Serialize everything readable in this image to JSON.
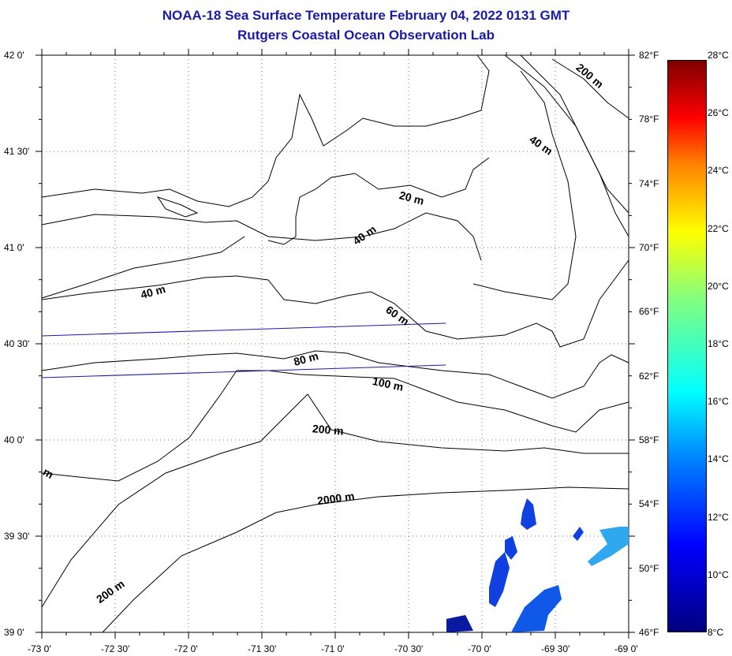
{
  "title": {
    "line1": "NOAA-18 Sea Surface Temperature February 04, 2022 0131 GMT",
    "line2": "Rutgers Coastal Ocean Observation Lab"
  },
  "lat_labels": [
    "42 0'",
    "41 30'",
    "41 0'",
    "40 30'",
    "40 0'",
    "39 30'",
    "39 0'"
  ],
  "lon_labels": [
    "-73 0'",
    "-72 30'",
    "-72 0'",
    "-71 30'",
    "-71 0'",
    "-70 30'",
    "-70 0'",
    "-69 30'",
    "-69 0'"
  ],
  "colorbar": {
    "f_labels": [
      "82°F",
      "78°F",
      "74°F",
      "70°F",
      "66°F",
      "62°F",
      "58°F",
      "54°F",
      "50°F",
      "46°F"
    ],
    "c_labels": [
      "28°C",
      "26°C",
      "24°C",
      "22°C",
      "20°C",
      "18°C",
      "16°C",
      "14°C",
      "12°C",
      "10°C",
      "8°C"
    ],
    "min_c": 8,
    "max_c": 28
  },
  "contour_labels": [
    "200 m",
    "40 m",
    "20 m",
    "40 m",
    "40 m",
    "60 m",
    "80 m",
    "100 m",
    "200 m",
    "2000 m",
    "200 m",
    "m"
  ],
  "colors": {
    "title": "#1a1aa6",
    "coast": "#000000",
    "track": "#1a1aa6"
  }
}
